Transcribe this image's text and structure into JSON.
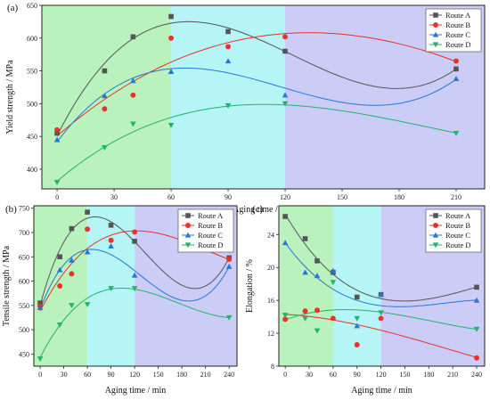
{
  "colors": {
    "zone_green": "#b9f2bd",
    "zone_cyan": "#b6f5f5",
    "zone_purple": "#cccdf7",
    "route_a": "#555555",
    "route_b": "#e8322b",
    "route_c": "#2777d6",
    "route_d": "#22b36d"
  },
  "chart_data": [
    {
      "id": "a",
      "panel_label": "(a)",
      "type": "scatter",
      "xlabel": "Aging time / min",
      "ylabel": "Yield strength / MPa",
      "xlim": [
        -8,
        225
      ],
      "ylim": [
        370,
        650
      ],
      "xticks": [
        0,
        30,
        60,
        90,
        120,
        150,
        180,
        210
      ],
      "yticks": [
        400,
        450,
        500,
        550,
        600,
        650
      ],
      "zones": [
        [
          -8,
          60,
          "zone_green"
        ],
        [
          60,
          120,
          "zone_cyan"
        ],
        [
          120,
          225,
          "zone_purple"
        ]
      ],
      "legend": "top-right",
      "series": [
        {
          "name": "Route A",
          "marker": "square",
          "color": "route_a",
          "x": [
            0,
            25,
            40,
            60,
            90,
            120,
            210
          ],
          "y": [
            455,
            550,
            602,
            633,
            610,
            580,
            553
          ]
        },
        {
          "name": "Route B",
          "marker": "circle",
          "color": "route_b",
          "x": [
            0,
            25,
            40,
            60,
            90,
            120,
            210
          ],
          "y": [
            460,
            492,
            513,
            600,
            587,
            602,
            565
          ]
        },
        {
          "name": "Route C",
          "marker": "triangle-up",
          "color": "route_c",
          "x": [
            0,
            25,
            40,
            60,
            90,
            120,
            210
          ],
          "y": [
            445,
            512,
            535,
            549,
            565,
            513,
            538
          ]
        },
        {
          "name": "Route D",
          "marker": "triangle-down",
          "color": "route_d",
          "x": [
            0,
            25,
            40,
            60,
            90,
            120,
            210
          ],
          "y": [
            380,
            433,
            469,
            467,
            497,
            500,
            455
          ]
        }
      ]
    },
    {
      "id": "b",
      "panel_label": "(b)",
      "type": "scatter",
      "xlabel": "Aging time / min",
      "ylabel": "Tensile strength / MPa",
      "xlim": [
        -8,
        250
      ],
      "ylim": [
        425,
        755
      ],
      "xticks": [
        0,
        30,
        60,
        90,
        120,
        150,
        180,
        210,
        240
      ],
      "yticks": [
        450,
        500,
        550,
        600,
        650,
        700,
        750
      ],
      "zones": [
        [
          -8,
          60,
          "zone_green"
        ],
        [
          60,
          120,
          "zone_cyan"
        ],
        [
          120,
          250,
          "zone_purple"
        ]
      ],
      "legend": "top-right",
      "series": [
        {
          "name": "Route A",
          "marker": "square",
          "color": "route_a",
          "x": [
            0,
            25,
            40,
            60,
            90,
            120,
            240
          ],
          "y": [
            555,
            650,
            708,
            742,
            715,
            682,
            648
          ]
        },
        {
          "name": "Route B",
          "marker": "circle",
          "color": "route_b",
          "x": [
            0,
            25,
            40,
            60,
            90,
            120,
            240
          ],
          "y": [
            548,
            590,
            615,
            707,
            684,
            701,
            645
          ]
        },
        {
          "name": "Route C",
          "marker": "triangle-up",
          "color": "route_c",
          "x": [
            0,
            25,
            40,
            60,
            90,
            120,
            240
          ],
          "y": [
            545,
            623,
            643,
            660,
            672,
            612,
            630
          ]
        },
        {
          "name": "Route D",
          "marker": "triangle-down",
          "color": "route_d",
          "x": [
            0,
            25,
            40,
            60,
            90,
            120,
            240
          ],
          "y": [
            440,
            510,
            550,
            552,
            585,
            585,
            525
          ]
        }
      ]
    },
    {
      "id": "c",
      "panel_label": "(c)",
      "type": "scatter",
      "xlabel": "Aging time / min",
      "ylabel": "Elongation / %",
      "xlim": [
        -8,
        250
      ],
      "ylim": [
        8,
        27.5
      ],
      "xticks": [
        0,
        30,
        60,
        90,
        120,
        150,
        180,
        210,
        240
      ],
      "yticks": [
        8,
        12,
        16,
        20,
        24
      ],
      "zones": [
        [
          -8,
          60,
          "zone_green"
        ],
        [
          60,
          120,
          "zone_cyan"
        ],
        [
          120,
          250,
          "zone_purple"
        ]
      ],
      "legend": "top-right",
      "series": [
        {
          "name": "Route A",
          "marker": "square",
          "color": "route_a",
          "x": [
            0,
            25,
            40,
            60,
            90,
            120,
            240
          ],
          "y": [
            26.2,
            23.5,
            20.8,
            19.4,
            16.4,
            16.7,
            17.6
          ]
        },
        {
          "name": "Route B",
          "marker": "circle",
          "color": "route_b",
          "x": [
            0,
            25,
            40,
            60,
            90,
            120,
            240
          ],
          "y": [
            13.7,
            14.7,
            14.8,
            13.8,
            10.6,
            13.8,
            9.0
          ]
        },
        {
          "name": "Route C",
          "marker": "triangle-up",
          "color": "route_c",
          "x": [
            0,
            25,
            40,
            60,
            90,
            120,
            240
          ],
          "y": [
            23.0,
            19.4,
            19.0,
            19.6,
            12.9,
            16.7,
            16.0
          ]
        },
        {
          "name": "Route D",
          "marker": "triangle-down",
          "color": "route_d",
          "x": [
            0,
            25,
            40,
            60,
            90,
            120,
            240
          ],
          "y": [
            14.2,
            13.8,
            12.3,
            18.2,
            13.8,
            14.5,
            12.5
          ]
        }
      ]
    }
  ]
}
